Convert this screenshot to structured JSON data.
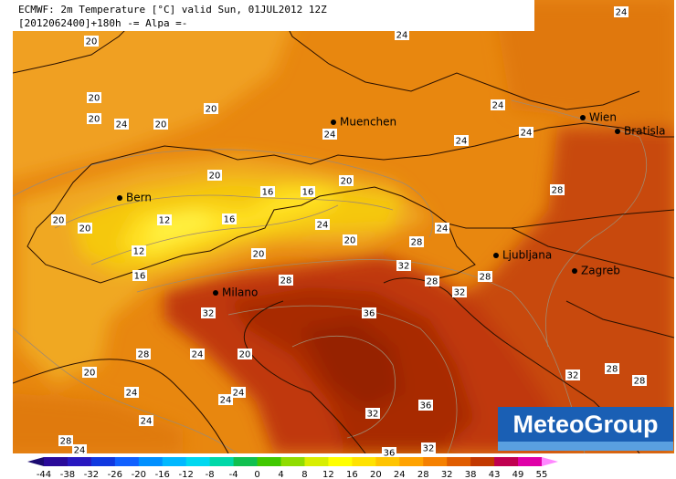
{
  "header": {
    "line1": "ECMWF: 2m Temperature [°C] valid Sun, 01JUL2012 12Z",
    "line2": "[2012062400]+180h -= Alpa =-"
  },
  "cities": [
    "Muenchen",
    "Wien",
    "Bratisla",
    "Bern",
    "Ljubljana",
    "Zagreb",
    "Milano"
  ],
  "contour_labels": [
    20,
    24,
    24,
    20,
    20,
    20,
    24,
    20,
    24,
    24,
    24,
    24,
    20,
    16,
    16,
    20,
    28,
    20,
    20,
    12,
    16,
    24,
    24,
    20,
    28,
    12,
    20,
    32,
    16,
    28,
    28,
    28,
    32,
    32,
    36,
    28,
    24,
    20,
    20,
    32,
    28,
    28,
    24,
    24,
    24,
    36,
    32,
    24,
    28,
    24,
    36,
    32
  ],
  "legend": {
    "ticks": [
      -44,
      -38,
      -32,
      -26,
      -20,
      -16,
      -12,
      -8,
      -4,
      0,
      4,
      8,
      12,
      16,
      20,
      24,
      28,
      32,
      38,
      43,
      49,
      55
    ],
    "colors": [
      "#1a0a70",
      "#2a0a9a",
      "#2818c0",
      "#1038e0",
      "#1060ff",
      "#0090ff",
      "#00b8ff",
      "#00d8f0",
      "#00d8a8",
      "#10c050",
      "#40c800",
      "#90dc00",
      "#d8ee00",
      "#ffff00",
      "#ffe200",
      "#ffc400",
      "#ffa200",
      "#f58000",
      "#e05c00",
      "#c23800",
      "#c00050",
      "#e000a8",
      "#ff88ff"
    ]
  },
  "logo": "MeteoGroup"
}
